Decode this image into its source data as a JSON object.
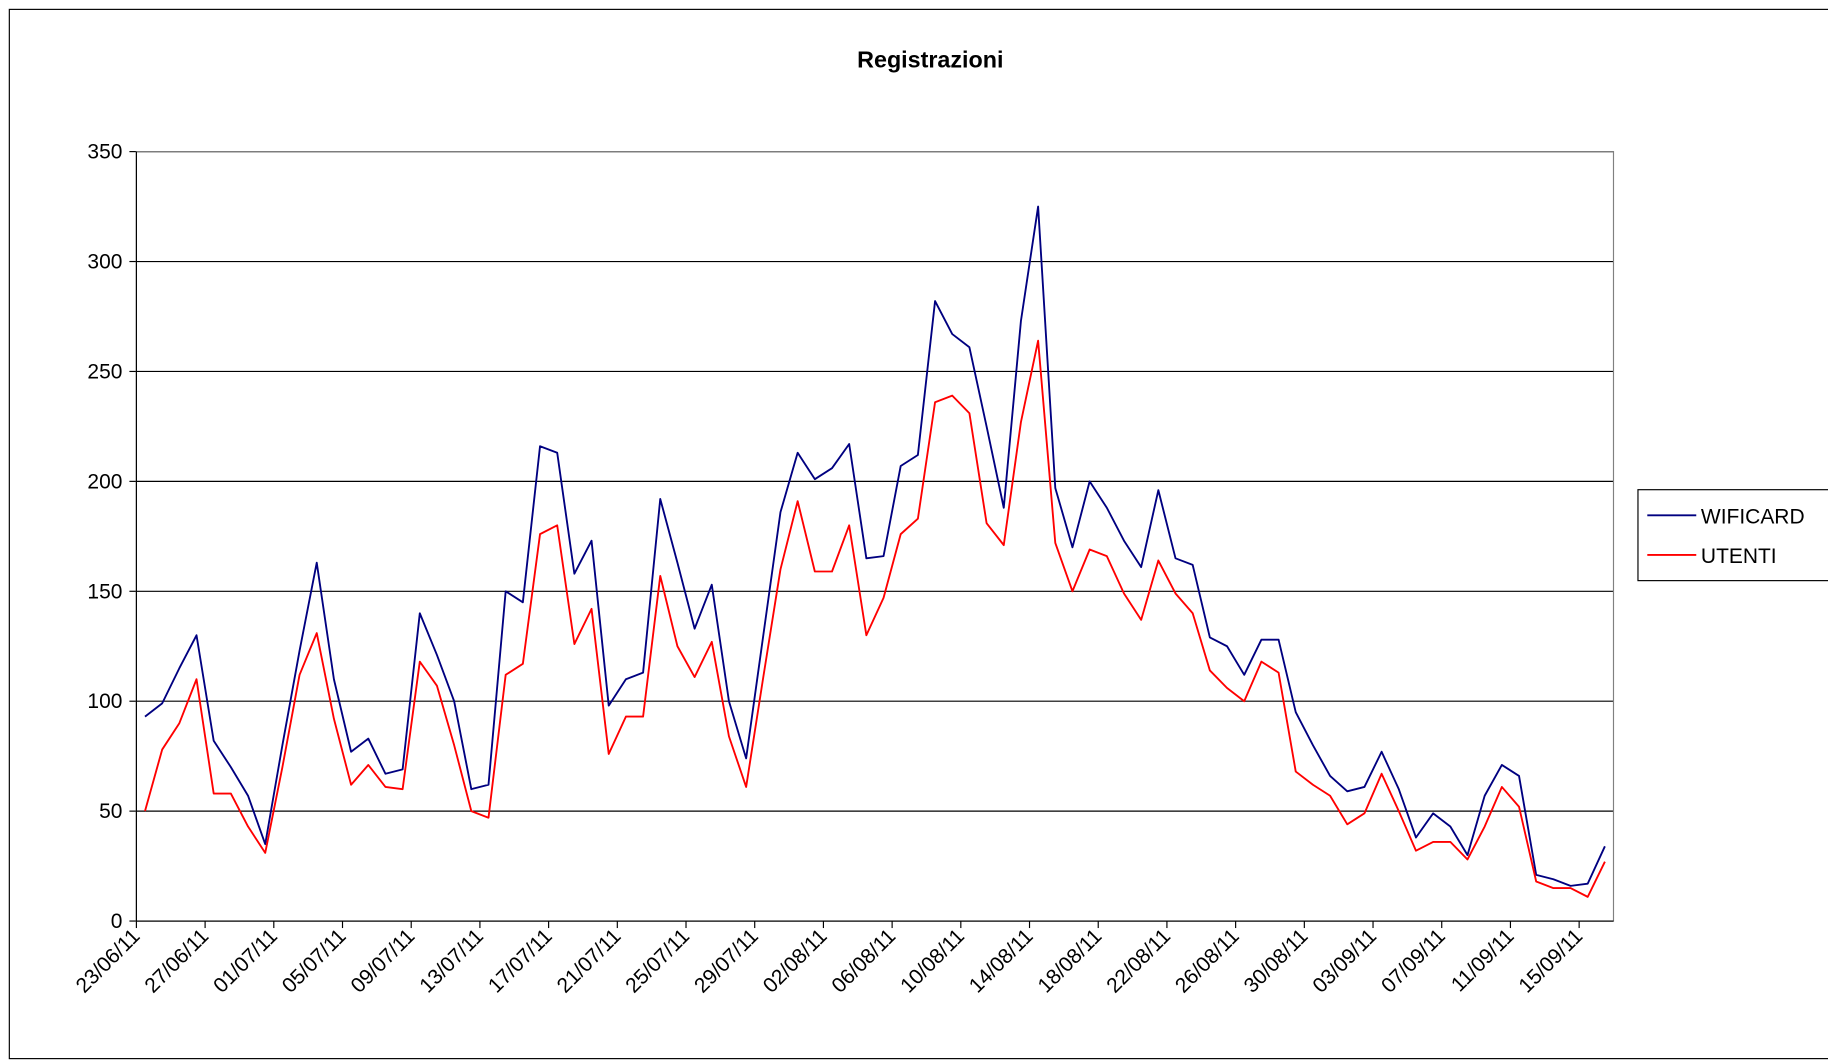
{
  "chart_data": {
    "type": "line",
    "title": "Registrazioni",
    "categories": [
      "23/06/11",
      null,
      null,
      null,
      "27/06/11",
      null,
      null,
      null,
      "01/07/11",
      null,
      null,
      null,
      "05/07/11",
      null,
      null,
      null,
      "09/07/11",
      null,
      null,
      null,
      "13/07/11",
      null,
      null,
      null,
      "17/07/11",
      null,
      null,
      null,
      "21/07/11",
      null,
      null,
      null,
      "25/07/11",
      null,
      null,
      null,
      "29/07/11",
      null,
      null,
      null,
      "02/08/11",
      null,
      null,
      null,
      "06/08/11",
      null,
      null,
      null,
      "10/08/11",
      null,
      null,
      null,
      "14/08/11",
      null,
      null,
      null,
      "18/08/11",
      null,
      null,
      null,
      "22/08/11",
      null,
      null,
      null,
      "26/08/11",
      null,
      null,
      null,
      "30/08/11",
      null,
      null,
      null,
      "03/09/11",
      null,
      null,
      null,
      "07/09/11",
      null,
      null,
      null,
      "11/09/11",
      null,
      null,
      null,
      "15/09/11",
      null
    ],
    "series": [
      {
        "name": "WIFICARD",
        "color": "#000080",
        "values": [
          93,
          99,
          115,
          130,
          82,
          70,
          57,
          35,
          80,
          123,
          163,
          110,
          77,
          83,
          67,
          69,
          140,
          121,
          100,
          60,
          62,
          150,
          145,
          216,
          213,
          158,
          173,
          98,
          110,
          113,
          192,
          163,
          133,
          153,
          100,
          74,
          130,
          186,
          213,
          201,
          206,
          217,
          165,
          166,
          207,
          212,
          282,
          267,
          261,
          225,
          188,
          273,
          325,
          197,
          170,
          200,
          188,
          173,
          161,
          196,
          165,
          162,
          129,
          125,
          112,
          128,
          128,
          95,
          80,
          66,
          59,
          61,
          77,
          60,
          38,
          49,
          43,
          30,
          57,
          71,
          66,
          21,
          19,
          16,
          17,
          34
        ]
      },
      {
        "name": "UTENTI",
        "color": "#ff0000",
        "values": [
          50,
          78,
          90,
          110,
          58,
          58,
          43,
          31,
          70,
          112,
          131,
          92,
          62,
          71,
          61,
          60,
          118,
          107,
          80,
          50,
          47,
          112,
          117,
          176,
          180,
          126,
          142,
          76,
          93,
          93,
          157,
          125,
          111,
          127,
          84,
          61,
          111,
          160,
          191,
          159,
          159,
          180,
          130,
          147,
          176,
          183,
          236,
          239,
          231,
          181,
          171,
          227,
          264,
          172,
          150,
          169,
          166,
          149,
          137,
          164,
          149,
          140,
          114,
          106,
          100,
          118,
          113,
          68,
          62,
          57,
          44,
          49,
          67,
          50,
          32,
          36,
          36,
          28,
          43,
          61,
          52,
          18,
          15,
          15,
          11,
          27
        ]
      }
    ],
    "ylim": [
      0,
      350
    ],
    "yticks": [
      0,
      50,
      100,
      150,
      200,
      250,
      300,
      350
    ],
    "grid": true,
    "legend": "right"
  }
}
